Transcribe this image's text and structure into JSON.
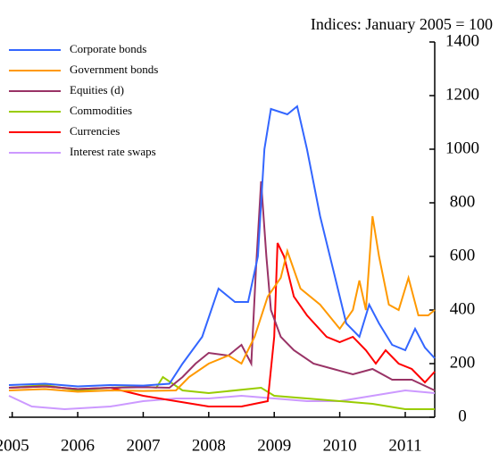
{
  "chart_data": {
    "type": "line",
    "annotation": "Indices: January 2005 = 100",
    "ylim": [
      0,
      1400
    ],
    "yticks": [
      0,
      200,
      400,
      600,
      800,
      1000,
      1200,
      1400
    ],
    "xlim": [
      2004.95,
      2011.45
    ],
    "xticks": [
      2005,
      2006,
      2007,
      2008,
      2009,
      2010,
      2011
    ],
    "legend": "top-left",
    "series": [
      {
        "name": "Corporate bonds",
        "color": "#3366ff",
        "x": [
          2004.95,
          2005.5,
          2006,
          2006.5,
          2007,
          2007.4,
          2007.6,
          2007.9,
          2008.15,
          2008.4,
          2008.6,
          2008.75,
          2008.85,
          2008.95,
          2009.2,
          2009.35,
          2009.5,
          2009.7,
          2009.9,
          2010.1,
          2010.3,
          2010.45,
          2010.6,
          2010.8,
          2011.0,
          2011.15,
          2011.3,
          2011.45
        ],
        "values": [
          120,
          125,
          115,
          120,
          118,
          125,
          200,
          300,
          480,
          430,
          430,
          600,
          1000,
          1150,
          1130,
          1160,
          1000,
          750,
          550,
          350,
          300,
          420,
          350,
          270,
          250,
          330,
          260,
          220
        ]
      },
      {
        "name": "Government bonds",
        "color": "#ff9900",
        "x": [
          2004.95,
          2005.5,
          2006,
          2006.5,
          2007,
          2007.5,
          2007.7,
          2008.0,
          2008.3,
          2008.5,
          2008.7,
          2008.9,
          2009.1,
          2009.2,
          2009.4,
          2009.7,
          2010.0,
          2010.2,
          2010.3,
          2010.4,
          2010.5,
          2010.6,
          2010.75,
          2010.9,
          2011.05,
          2011.2,
          2011.35,
          2011.45
        ],
        "values": [
          100,
          105,
          95,
          100,
          98,
          100,
          150,
          200,
          230,
          200,
          300,
          450,
          520,
          620,
          480,
          420,
          330,
          400,
          510,
          400,
          750,
          600,
          420,
          400,
          520,
          380,
          380,
          400
        ]
      },
      {
        "name": "Equities (d)",
        "color": "#993366",
        "x": [
          2004.95,
          2005.5,
          2006,
          2006.5,
          2007,
          2007.4,
          2007.6,
          2007.8,
          2008.0,
          2008.3,
          2008.5,
          2008.65,
          2008.72,
          2008.8,
          2008.88,
          2008.95,
          2009.1,
          2009.3,
          2009.6,
          2009.9,
          2010.2,
          2010.5,
          2010.8,
          2011.1,
          2011.45
        ],
        "values": [
          110,
          115,
          105,
          110,
          112,
          110,
          150,
          200,
          240,
          230,
          270,
          200,
          550,
          880,
          600,
          400,
          300,
          250,
          200,
          180,
          160,
          180,
          140,
          140,
          100
        ]
      },
      {
        "name": "Commodities",
        "color": "#99cc00",
        "x": [
          2004.95,
          2005.5,
          2006,
          2006.5,
          2007,
          2007.2,
          2007.3,
          2007.6,
          2008.0,
          2008.8,
          2009.0,
          2009.5,
          2010.0,
          2010.5,
          2011.0,
          2011.45
        ],
        "values": [
          110,
          120,
          100,
          110,
          115,
          110,
          150,
          100,
          90,
          110,
          80,
          70,
          60,
          50,
          30,
          30
        ]
      },
      {
        "name": "Currencies",
        "color": "#ff0000",
        "x": [
          2004.95,
          2005.5,
          2006,
          2006.5,
          2007,
          2007.5,
          2008,
          2008.5,
          2008.9,
          2009.0,
          2009.05,
          2009.15,
          2009.3,
          2009.5,
          2009.8,
          2010.0,
          2010.2,
          2010.4,
          2010.55,
          2010.7,
          2010.9,
          2011.1,
          2011.3,
          2011.45
        ],
        "values": [
          110,
          115,
          105,
          110,
          80,
          60,
          40,
          40,
          60,
          300,
          650,
          600,
          450,
          380,
          300,
          280,
          300,
          250,
          200,
          250,
          200,
          180,
          130,
          170
        ]
      },
      {
        "name": "Interest rate swaps",
        "color": "#cc99ff",
        "x": [
          2004.95,
          2005.3,
          2005.8,
          2006.5,
          2007.0,
          2007.5,
          2008.0,
          2008.5,
          2009.0,
          2009.5,
          2010.0,
          2010.5,
          2011.0,
          2011.45
        ],
        "values": [
          80,
          40,
          30,
          40,
          60,
          70,
          70,
          80,
          70,
          60,
          60,
          80,
          100,
          90
        ]
      }
    ]
  }
}
